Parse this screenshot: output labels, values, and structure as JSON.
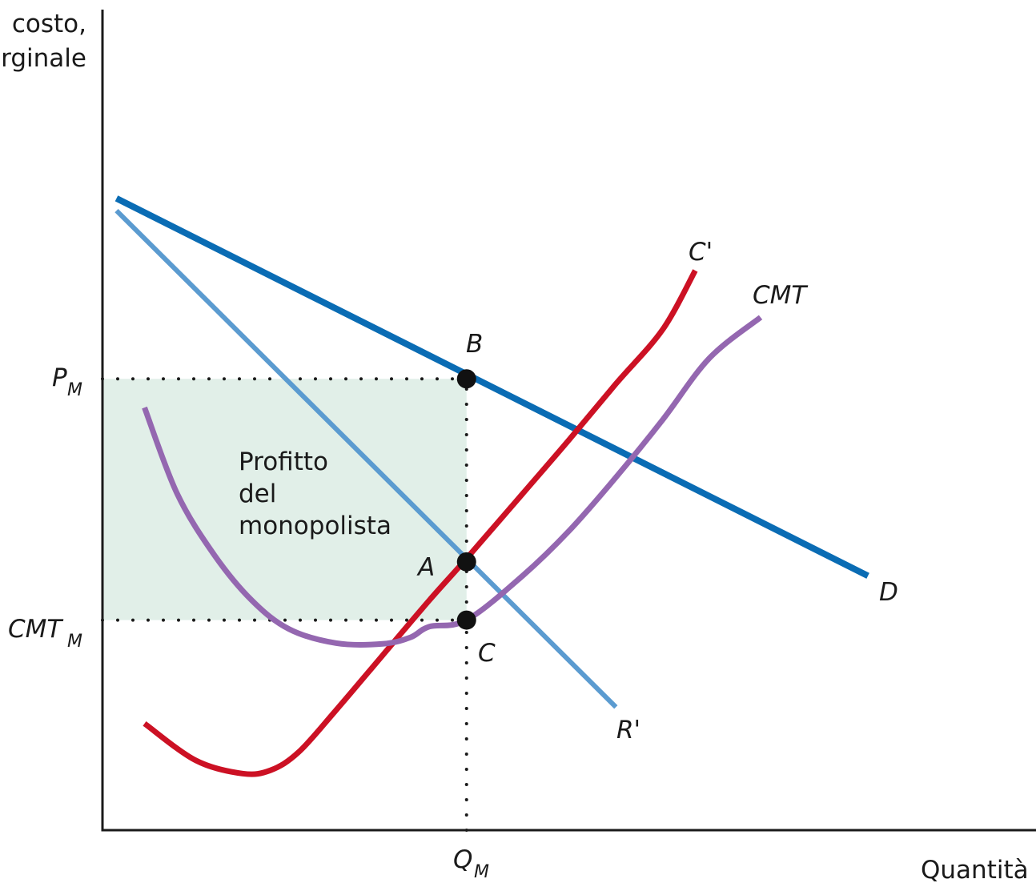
{
  "chart_data": {
    "type": "line",
    "title": "",
    "ylabel": [
      "costo,",
      "rginale"
    ],
    "xlabel": "Quantità",
    "xlim": [
      0,
      100
    ],
    "ylim": [
      0,
      100
    ],
    "colors": {
      "demand": "#0a6cb4",
      "marginal_revenue": "#5b9bd0",
      "marginal_cost": "#cc1124",
      "average_total_cost": "#9467b0",
      "profit_area": "#e1efe8",
      "axis": "#1a1a1a"
    },
    "series": [
      {
        "name": "D",
        "key": "demand",
        "x": [
          1.5,
          82
        ],
        "y": [
          77,
          31
        ]
      },
      {
        "name": "R'",
        "key": "marginal_revenue",
        "x": [
          1.5,
          55
        ],
        "y": [
          75.5,
          15
        ]
      },
      {
        "name": "C'",
        "key": "marginal_cost",
        "x": [
          4.5,
          10,
          15,
          18,
          21,
          25,
          30,
          35,
          39,
          45,
          50,
          55,
          60,
          63.5
        ],
        "y": [
          13,
          8.5,
          6.9,
          7.3,
          9.5,
          14.6,
          21.3,
          28,
          33.1,
          41,
          47.6,
          54.4,
          61,
          68.2
        ]
      },
      {
        "name": "CMT",
        "key": "average_total_cost",
        "x": [
          4.5,
          8,
          12,
          16,
          20,
          25,
          30,
          33,
          35,
          39,
          45,
          50,
          55,
          60,
          65,
          70.5
        ],
        "y": [
          51.5,
          41,
          33.5,
          28,
          24.5,
          22.8,
          22.7,
          23.5,
          24.8,
          25.6,
          31,
          36.5,
          43,
          50,
          57.5,
          62.5
        ]
      }
    ],
    "points": [
      {
        "label": "B",
        "x": 39,
        "y": 55
      },
      {
        "label": "A",
        "x": 39,
        "y": 32.7
      },
      {
        "label": "C",
        "x": 39,
        "y": 25.6
      }
    ],
    "reference": {
      "x_tick": "Q_M",
      "x_value": 39,
      "y_ticks": [
        {
          "label": "P_M",
          "value": 55
        },
        {
          "label": "CMT_M",
          "value": 25.6
        }
      ]
    },
    "area": {
      "label": [
        "Profitto",
        "del",
        "monopolista"
      ],
      "x": [
        0,
        39
      ],
      "y": [
        25.6,
        55
      ]
    }
  }
}
